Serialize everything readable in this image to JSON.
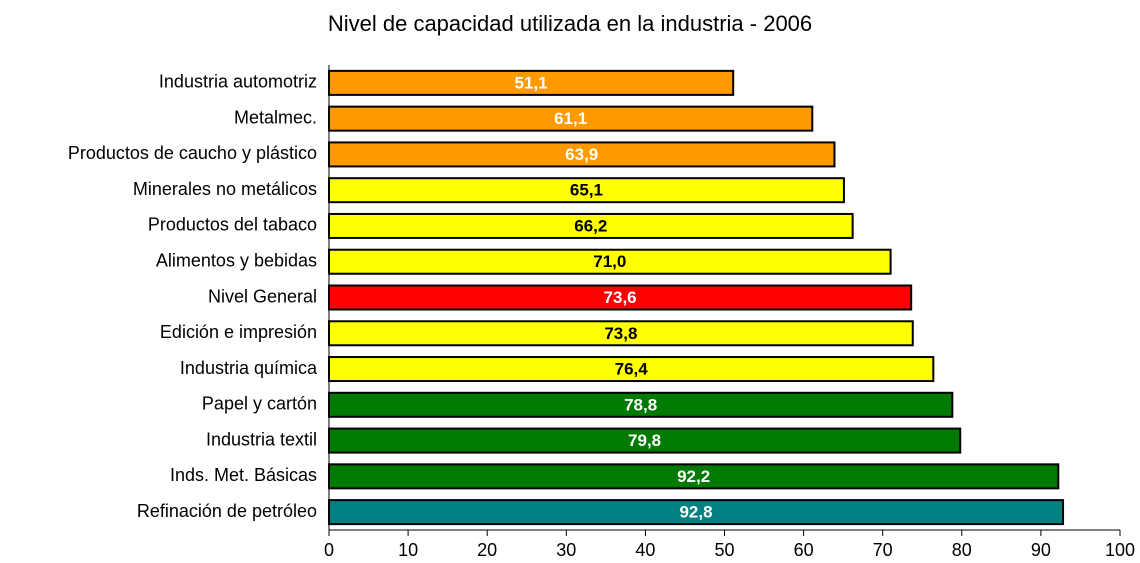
{
  "chart_data": {
    "type": "bar",
    "orientation": "horizontal",
    "title": "Nivel de capacidad utilizada en la industria - 2006",
    "categories": [
      "Industria automotriz",
      "Metalmec.",
      "Productos de caucho y plástico",
      "Minerales no metálicos",
      "Productos del tabaco",
      "Alimentos y bebidas",
      "Nivel General",
      "Edición e impresión",
      "Industria química",
      "Papel y  cartón",
      "Industria textil",
      "Inds. Met. Básicas",
      "Refinación de petróleo"
    ],
    "values": [
      51.1,
      61.1,
      63.9,
      65.1,
      66.2,
      71.0,
      73.6,
      73.8,
      76.4,
      78.8,
      79.8,
      92.2,
      92.8
    ],
    "value_labels": [
      "51,1",
      "61,1",
      "63,9",
      "65,1",
      "66,2",
      "71,0",
      "73,6",
      "73,8",
      "76,4",
      "78,8",
      "79,8",
      "92,2",
      "92,8"
    ],
    "colors": [
      "#ff9900",
      "#ff9900",
      "#ff9900",
      "#ffff00",
      "#ffff00",
      "#ffff00",
      "#ff0000",
      "#ffff00",
      "#ffff00",
      "#007a00",
      "#007a00",
      "#007a00",
      "#008080"
    ],
    "value_label_colors": [
      "#ffffff",
      "#ffffff",
      "#ffffff",
      "#000000",
      "#000000",
      "#000000",
      "#ffffff",
      "#000000",
      "#000000",
      "#ffffff",
      "#ffffff",
      "#ffffff",
      "#ffffff"
    ],
    "xlim": [
      0,
      100
    ],
    "xticks": [
      0,
      10,
      20,
      30,
      40,
      50,
      60,
      70,
      80,
      90,
      100
    ],
    "grid": false
  }
}
